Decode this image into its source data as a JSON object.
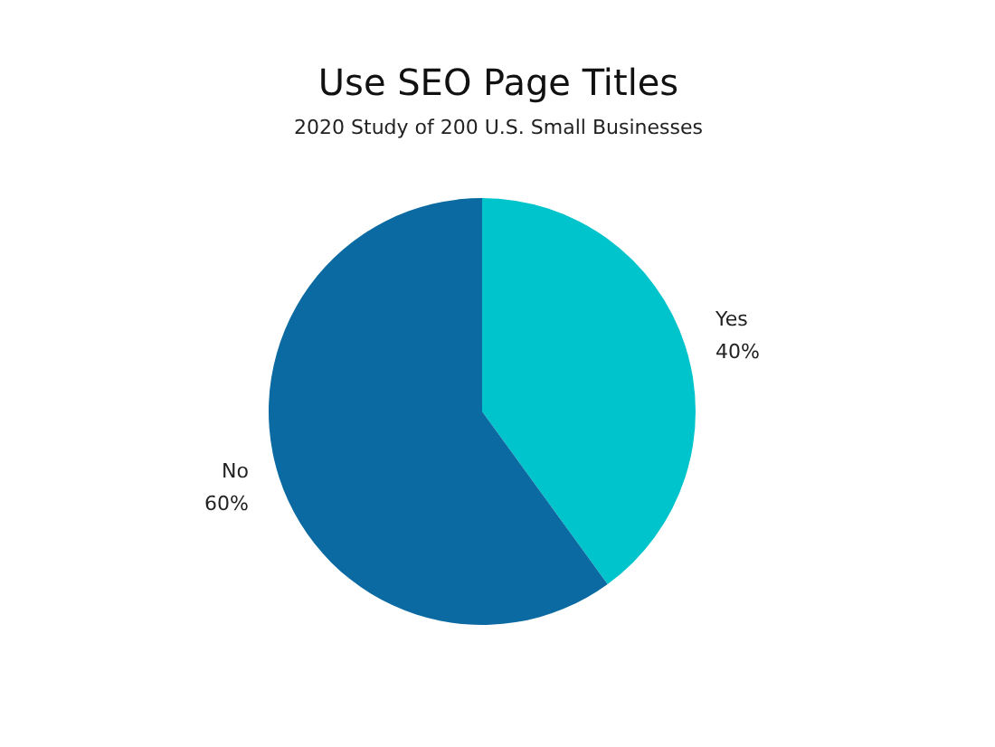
{
  "chart_data": {
    "type": "pie",
    "title": "Use SEO Page Titles",
    "subtitle": "2020 Study of 200 U.S. Small Businesses",
    "categories": [
      "Yes",
      "No"
    ],
    "values": [
      40,
      60
    ],
    "colors": [
      "#00c4cc",
      "#0a6aa1"
    ],
    "value_labels": [
      "40%",
      "60%"
    ]
  }
}
